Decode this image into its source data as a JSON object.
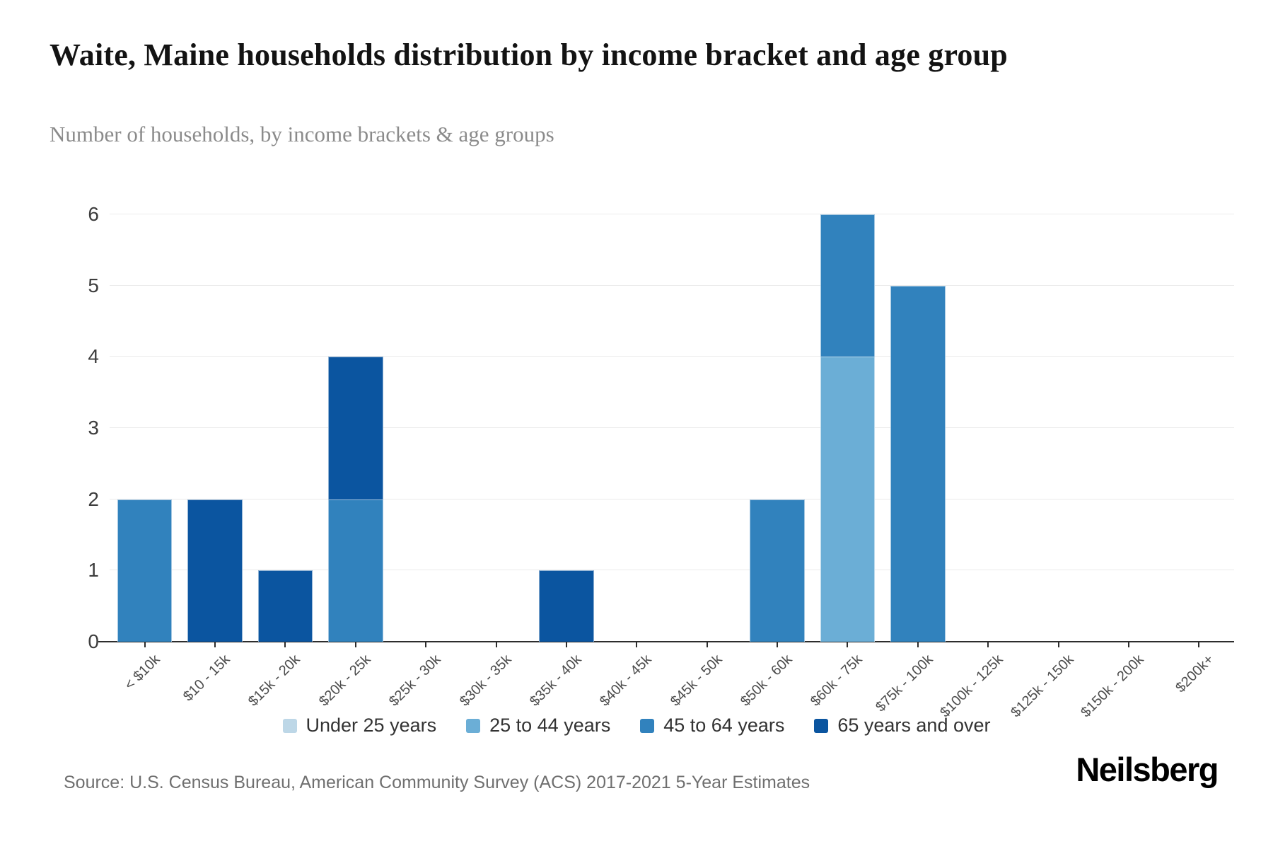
{
  "header": {
    "title": "Waite, Maine households distribution by income bracket and age group",
    "subtitle": "Number of households, by income brackets & age groups"
  },
  "footer": {
    "source": "Source: U.S. Census Bureau, American Community Survey (ACS) 2017-2021 5-Year Estimates",
    "brand": "Neilsberg"
  },
  "chart_data": {
    "type": "bar",
    "stacked": true,
    "title": "Waite, Maine households distribution by income bracket and age group",
    "subtitle": "Number of households, by income brackets & age groups",
    "categories": [
      "< $10k",
      "$10 - 15k",
      "$15k - 20k",
      "$20k - 25k",
      "$25k - 30k",
      "$30k - 35k",
      "$35k - 40k",
      "$40k - 45k",
      "$45k - 50k",
      "$50k - 60k",
      "$60k - 75k",
      "$75k - 100k",
      "$100k - 125k",
      "$125k - 150k",
      "$150k - 200k",
      "$200k+"
    ],
    "series": [
      {
        "name": "Under 25 years",
        "color": "#bdd7e7",
        "values": [
          0,
          0,
          0,
          0,
          0,
          0,
          0,
          0,
          0,
          0,
          0,
          0,
          0,
          0,
          0,
          0
        ]
      },
      {
        "name": "25 to 44 years",
        "color": "#6baed6",
        "values": [
          0,
          0,
          0,
          0,
          0,
          0,
          0,
          0,
          0,
          0,
          4,
          0,
          0,
          0,
          0,
          0
        ]
      },
      {
        "name": "45 to 64 years",
        "color": "#3182bd",
        "values": [
          2,
          0,
          0,
          2,
          0,
          0,
          0,
          0,
          0,
          2,
          2,
          5,
          0,
          0,
          0,
          0
        ]
      },
      {
        "name": "65 years and over",
        "color": "#0b55a0",
        "values": [
          0,
          2,
          1,
          2,
          0,
          0,
          1,
          0,
          0,
          0,
          0,
          0,
          0,
          0,
          0,
          0
        ]
      }
    ],
    "totals_per_category": [
      2,
      2,
      1,
      4,
      0,
      0,
      1,
      0,
      0,
      2,
      6,
      5,
      0,
      0,
      0,
      0
    ],
    "xlabel": "",
    "ylabel": "",
    "ylim": [
      0,
      6
    ],
    "yticks": [
      0,
      1,
      2,
      3,
      4,
      5,
      6
    ],
    "grid": true,
    "legend_position": "bottom"
  }
}
